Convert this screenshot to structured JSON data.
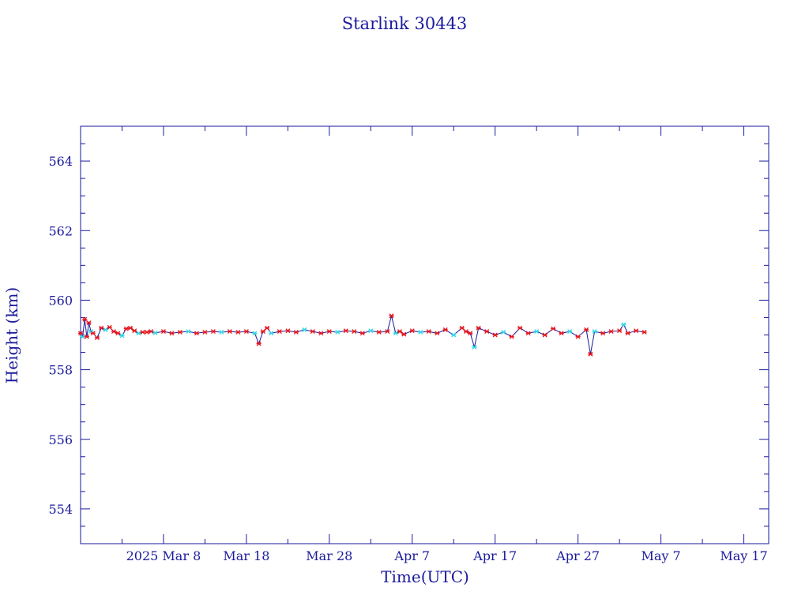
{
  "chart_data": {
    "type": "line",
    "title": "Starlink 30443",
    "xlabel": "Time(UTC)",
    "ylabel": "Height (km)",
    "x_unit": "days (2025)",
    "xlim": [
      "2025-02-26",
      "2025-05-20"
    ],
    "ylim": [
      553,
      565
    ],
    "x_ticks": [
      {
        "date": "2025-02-26",
        "label": ""
      },
      {
        "date": "2025-03-08",
        "label": "2025 Mar  8"
      },
      {
        "date": "2025-03-18",
        "label": "Mar 18"
      },
      {
        "date": "2025-03-28",
        "label": "Mar 28"
      },
      {
        "date": "2025-04-07",
        "label": "Apr  7"
      },
      {
        "date": "2025-04-17",
        "label": "Apr 17"
      },
      {
        "date": "2025-04-27",
        "label": "Apr 27"
      },
      {
        "date": "2025-05-07",
        "label": "May  7"
      },
      {
        "date": "2025-05-17",
        "label": "May 17"
      }
    ],
    "y_ticks": [
      554,
      556,
      558,
      560,
      562,
      564
    ],
    "colors": {
      "axis": "#1a1a9c",
      "line": "#1a1a9c",
      "red_marker": "#e8141c",
      "cyan_marker": "#33d6e6"
    },
    "series": [
      {
        "marker_colors_note": "red and cyan markers",
        "x": [
          "2025-02-26T00:00",
          "2025-02-26T06:00",
          "2025-02-26T12:00",
          "2025-02-26T18:00",
          "2025-02-27T00:00",
          "2025-02-27T06:00",
          "2025-02-27T12:00",
          "2025-02-28T00:00",
          "2025-02-28T12:00",
          "2025-03-01T00:00",
          "2025-03-01T12:00",
          "2025-03-02T00:00",
          "2025-03-02T12:00",
          "2025-03-03T00:00",
          "2025-03-03T12:00",
          "2025-03-04T00:00",
          "2025-03-04T12:00",
          "2025-03-05T00:00",
          "2025-03-05T12:00",
          "2025-03-06T00:00",
          "2025-03-06T12:00",
          "2025-03-07T00:00",
          "2025-03-08T00:00",
          "2025-03-09T00:00",
          "2025-03-10T00:00",
          "2025-03-11T00:00",
          "2025-03-12T00:00",
          "2025-03-13T00:00",
          "2025-03-14T00:00",
          "2025-03-15T00:00",
          "2025-03-16T00:00",
          "2025-03-17T00:00",
          "2025-03-18T00:00",
          "2025-03-19T00:00",
          "2025-03-19T12:00",
          "2025-03-20T00:00",
          "2025-03-20T12:00",
          "2025-03-21T00:00",
          "2025-03-22T00:00",
          "2025-03-23T00:00",
          "2025-03-24T00:00",
          "2025-03-25T00:00",
          "2025-03-26T00:00",
          "2025-03-27T00:00",
          "2025-03-28T00:00",
          "2025-03-29T00:00",
          "2025-03-30T00:00",
          "2025-03-31T00:00",
          "2025-04-01T00:00",
          "2025-04-02T00:00",
          "2025-04-03T00:00",
          "2025-04-04T00:00",
          "2025-04-04T12:00",
          "2025-04-05T00:00",
          "2025-04-05T12:00",
          "2025-04-06T00:00",
          "2025-04-07T00:00",
          "2025-04-08T00:00",
          "2025-04-09T00:00",
          "2025-04-10T00:00",
          "2025-04-11T00:00",
          "2025-04-12T00:00",
          "2025-04-13T00:00",
          "2025-04-13T12:00",
          "2025-04-14T00:00",
          "2025-04-14T12:00",
          "2025-04-15T00:00",
          "2025-04-16T00:00",
          "2025-04-17T00:00",
          "2025-04-18T00:00",
          "2025-04-19T00:00",
          "2025-04-20T00:00",
          "2025-04-21T00:00",
          "2025-04-22T00:00",
          "2025-04-23T00:00",
          "2025-04-24T00:00",
          "2025-04-25T00:00",
          "2025-04-26T00:00",
          "2025-04-27T00:00",
          "2025-04-28T00:00",
          "2025-04-28T12:00",
          "2025-04-29T00:00",
          "2025-04-30T00:00",
          "2025-05-01T00:00",
          "2025-05-02T00:00",
          "2025-05-02T12:00",
          "2025-05-03T00:00",
          "2025-05-04T00:00",
          "2025-05-05T00:00"
        ],
        "y": [
          559.05,
          558.95,
          559.45,
          558.95,
          559.35,
          559.1,
          559.05,
          558.92,
          559.2,
          559.15,
          559.22,
          559.1,
          559.05,
          558.98,
          559.18,
          559.2,
          559.12,
          559.05,
          559.08,
          559.08,
          559.1,
          559.06,
          559.1,
          559.05,
          559.08,
          559.1,
          559.05,
          559.08,
          559.1,
          559.08,
          559.1,
          559.08,
          559.1,
          559.05,
          558.75,
          559.1,
          559.2,
          559.05,
          559.1,
          559.12,
          559.08,
          559.15,
          559.1,
          559.05,
          559.1,
          559.08,
          559.12,
          559.1,
          559.05,
          559.12,
          559.08,
          559.1,
          559.55,
          559.05,
          559.1,
          559.02,
          559.12,
          559.08,
          559.1,
          559.05,
          559.15,
          559.0,
          559.2,
          559.1,
          559.05,
          558.65,
          559.2,
          559.1,
          559.0,
          559.08,
          558.95,
          559.2,
          559.05,
          559.1,
          559.0,
          559.18,
          559.05,
          559.1,
          558.95,
          559.15,
          558.45,
          559.1,
          559.05,
          559.1,
          559.12,
          559.3,
          559.05,
          559.12,
          559.08
        ]
      }
    ]
  }
}
